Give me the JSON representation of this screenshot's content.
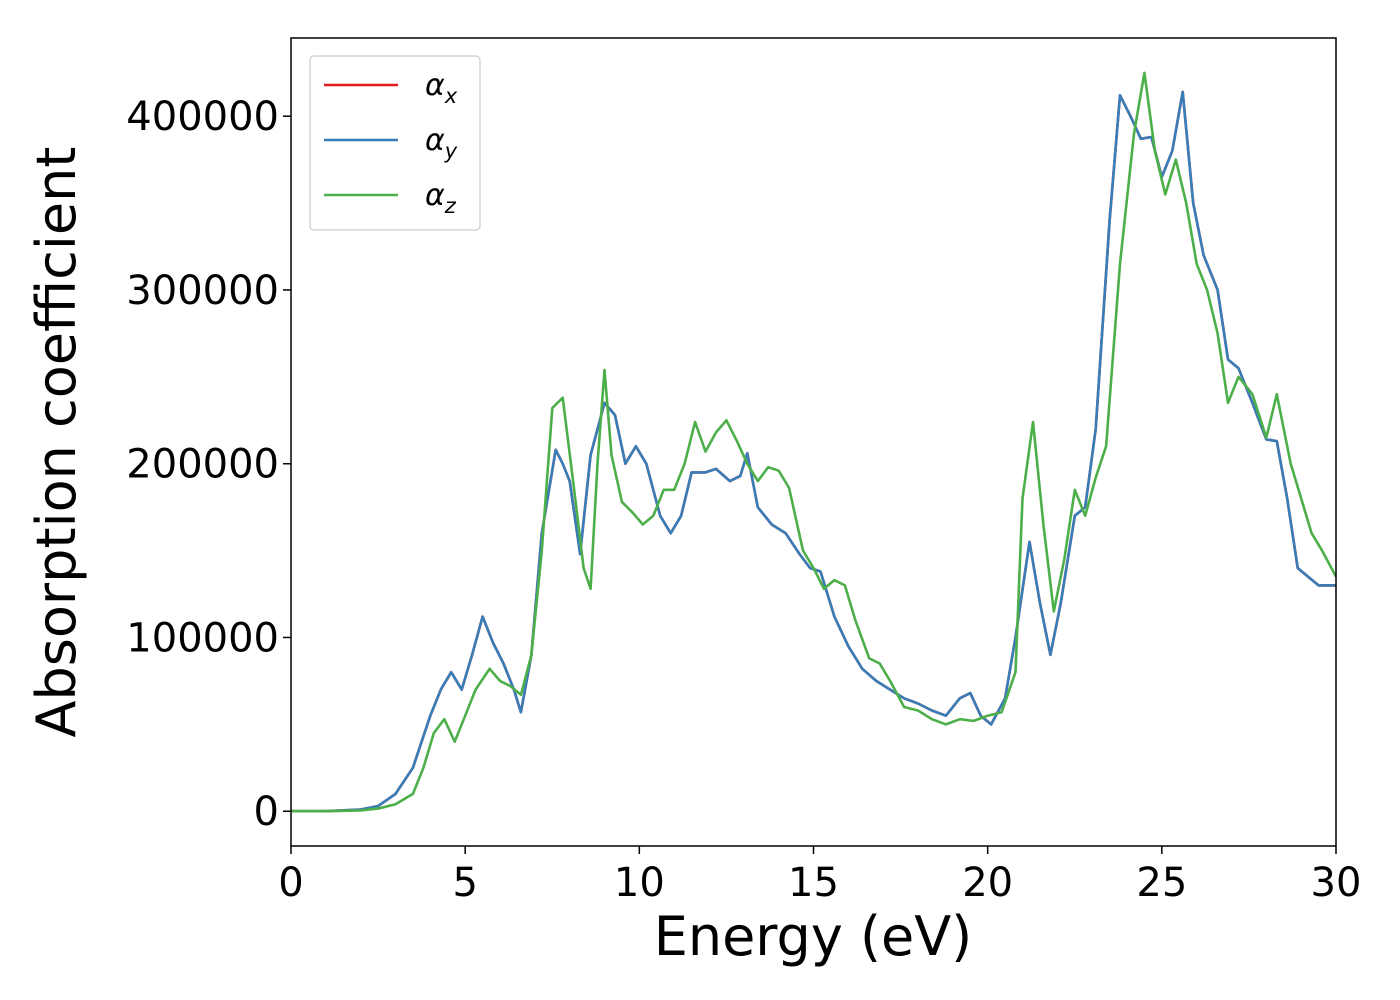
{
  "chart_data": {
    "type": "line",
    "title": "",
    "xlabel": "Energy (eV)",
    "ylabel": "Absorption coefficient",
    "xlim": [
      0,
      30
    ],
    "ylim": [
      -20000,
      445000
    ],
    "xticks": [
      0,
      5,
      10,
      15,
      20,
      25,
      30
    ],
    "yticks": [
      0,
      100000,
      200000,
      300000,
      400000
    ],
    "grid": false,
    "legend_position": "upper-left",
    "series": [
      {
        "name": "αx",
        "label_main": "α",
        "label_sub": "x",
        "color": "#e41a1c",
        "x": [
          0,
          1,
          2,
          2.5,
          3,
          3.5,
          4,
          4.3,
          4.6,
          4.9,
          5.2,
          5.5,
          5.8,
          6.1,
          6.4,
          6.6,
          6.9,
          7.2,
          7.6,
          7.8,
          8.0,
          8.3,
          8.6,
          9.0,
          9.3,
          9.6,
          9.9,
          10.2,
          10.6,
          10.9,
          11.2,
          11.5,
          11.9,
          12.2,
          12.6,
          12.9,
          13.1,
          13.4,
          13.8,
          14.2,
          14.6,
          14.9,
          15.2,
          15.6,
          16.0,
          16.4,
          16.8,
          17.2,
          17.6,
          18.0,
          18.4,
          18.8,
          19.2,
          19.5,
          19.8,
          20.1,
          20.5,
          20.8,
          21.2,
          21.5,
          21.8,
          22.1,
          22.5,
          22.8,
          23.1,
          23.5,
          23.8,
          24.1,
          24.4,
          24.7,
          25.0,
          25.3,
          25.6,
          25.9,
          26.2,
          26.6,
          26.9,
          27.2,
          27.6,
          28.0,
          28.3,
          28.6,
          28.9,
          29.2,
          29.5,
          29.8,
          30
        ],
        "y": [
          0,
          0,
          1000,
          3000,
          10000,
          25000,
          55000,
          70000,
          80000,
          70000,
          90000,
          112000,
          97000,
          85000,
          70000,
          57000,
          90000,
          160000,
          208000,
          200000,
          190000,
          148000,
          205000,
          235000,
          228000,
          200000,
          210000,
          200000,
          170000,
          160000,
          170000,
          195000,
          195000,
          197000,
          190000,
          193000,
          206000,
          175000,
          165000,
          160000,
          148000,
          140000,
          138000,
          112000,
          95000,
          82000,
          75000,
          70000,
          65000,
          62000,
          58000,
          55000,
          65000,
          68000,
          55000,
          50000,
          65000,
          100000,
          155000,
          120000,
          90000,
          120000,
          170000,
          175000,
          220000,
          340000,
          412000,
          400000,
          387000,
          388000,
          365000,
          380000,
          414000,
          350000,
          320000,
          300000,
          260000,
          255000,
          235000,
          214000,
          213000,
          180000,
          140000,
          135000,
          130000,
          130000,
          130000
        ]
      },
      {
        "name": "αy",
        "label_main": "α",
        "label_sub": "y",
        "color": "#377eb8",
        "x": [
          0,
          1,
          2,
          2.5,
          3,
          3.5,
          4,
          4.3,
          4.6,
          4.9,
          5.2,
          5.5,
          5.8,
          6.1,
          6.4,
          6.6,
          6.9,
          7.2,
          7.6,
          7.8,
          8.0,
          8.3,
          8.6,
          9.0,
          9.3,
          9.6,
          9.9,
          10.2,
          10.6,
          10.9,
          11.2,
          11.5,
          11.9,
          12.2,
          12.6,
          12.9,
          13.1,
          13.4,
          13.8,
          14.2,
          14.6,
          14.9,
          15.2,
          15.6,
          16.0,
          16.4,
          16.8,
          17.2,
          17.6,
          18.0,
          18.4,
          18.8,
          19.2,
          19.5,
          19.8,
          20.1,
          20.5,
          20.8,
          21.2,
          21.5,
          21.8,
          22.1,
          22.5,
          22.8,
          23.1,
          23.5,
          23.8,
          24.1,
          24.4,
          24.7,
          25.0,
          25.3,
          25.6,
          25.9,
          26.2,
          26.6,
          26.9,
          27.2,
          27.6,
          28.0,
          28.3,
          28.6,
          28.9,
          29.2,
          29.5,
          29.8,
          30
        ],
        "y": [
          0,
          0,
          1000,
          3000,
          10000,
          25000,
          55000,
          70000,
          80000,
          70000,
          90000,
          112000,
          97000,
          85000,
          70000,
          57000,
          90000,
          160000,
          208000,
          200000,
          190000,
          148000,
          205000,
          235000,
          228000,
          200000,
          210000,
          200000,
          170000,
          160000,
          170000,
          195000,
          195000,
          197000,
          190000,
          193000,
          206000,
          175000,
          165000,
          160000,
          148000,
          140000,
          138000,
          112000,
          95000,
          82000,
          75000,
          70000,
          65000,
          62000,
          58000,
          55000,
          65000,
          68000,
          55000,
          50000,
          65000,
          100000,
          155000,
          120000,
          90000,
          120000,
          170000,
          175000,
          220000,
          340000,
          412000,
          400000,
          387000,
          388000,
          365000,
          380000,
          414000,
          350000,
          320000,
          300000,
          260000,
          255000,
          235000,
          214000,
          213000,
          180000,
          140000,
          135000,
          130000,
          130000,
          130000
        ]
      },
      {
        "name": "αz",
        "label_main": "α",
        "label_sub": "z",
        "color": "#4daf4a",
        "x": [
          0,
          1,
          2,
          2.5,
          3,
          3.5,
          3.8,
          4.1,
          4.4,
          4.7,
          5.0,
          5.3,
          5.7,
          6.0,
          6.3,
          6.6,
          6.9,
          7.2,
          7.5,
          7.8,
          8.1,
          8.4,
          8.6,
          8.8,
          9.0,
          9.2,
          9.5,
          9.8,
          10.1,
          10.4,
          10.7,
          11.0,
          11.3,
          11.6,
          11.9,
          12.2,
          12.5,
          12.8,
          13.1,
          13.4,
          13.7,
          14.0,
          14.3,
          14.7,
          15.0,
          15.3,
          15.6,
          15.9,
          16.2,
          16.6,
          16.9,
          17.2,
          17.6,
          18.0,
          18.4,
          18.8,
          19.2,
          19.6,
          20.0,
          20.4,
          20.8,
          21.0,
          21.3,
          21.6,
          21.9,
          22.2,
          22.5,
          22.8,
          23.1,
          23.4,
          23.8,
          24.2,
          24.5,
          24.8,
          25.1,
          25.4,
          25.7,
          26.0,
          26.3,
          26.6,
          26.9,
          27.2,
          27.6,
          28.0,
          28.3,
          28.7,
          29.0,
          29.3,
          29.6,
          30
        ],
        "y": [
          0,
          0,
          500,
          1500,
          4000,
          10000,
          25000,
          45000,
          53000,
          40000,
          55000,
          70000,
          82000,
          75000,
          72000,
          67000,
          90000,
          150000,
          232000,
          238000,
          190000,
          140000,
          128000,
          200000,
          254000,
          205000,
          178000,
          172000,
          165000,
          170000,
          185000,
          185000,
          200000,
          224000,
          207000,
          218000,
          225000,
          213000,
          200000,
          190000,
          198000,
          196000,
          186000,
          150000,
          140000,
          128000,
          133000,
          130000,
          110000,
          88000,
          85000,
          75000,
          60000,
          58000,
          53000,
          50000,
          53000,
          52000,
          55000,
          57000,
          80000,
          180000,
          224000,
          165000,
          115000,
          145000,
          185000,
          170000,
          192000,
          210000,
          315000,
          390000,
          425000,
          380000,
          355000,
          375000,
          350000,
          315000,
          300000,
          275000,
          235000,
          250000,
          240000,
          215000,
          240000,
          200000,
          180000,
          160000,
          150000,
          135000
        ]
      }
    ]
  }
}
